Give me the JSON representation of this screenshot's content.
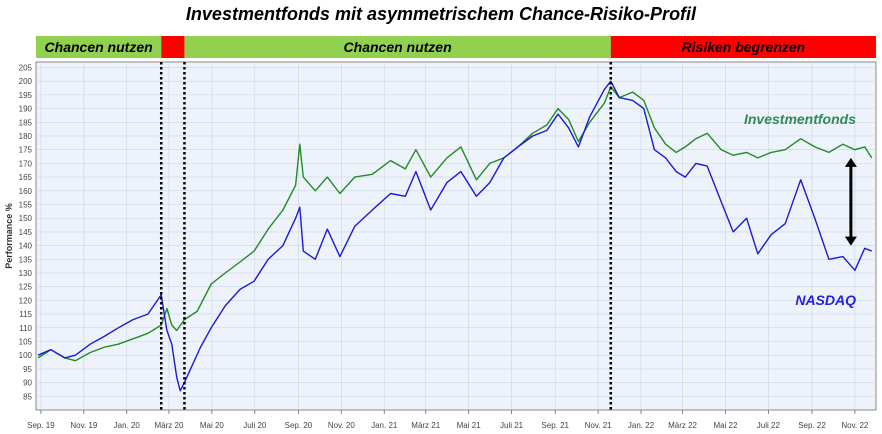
{
  "title": "Investmentfonds mit asymmetrischem Chance-Risiko-Profil",
  "colors": {
    "chance_band": "#92d050",
    "risk_band": "#ff0000",
    "fund_line": "#228b22",
    "nasdaq_line": "#1a1ad6",
    "fund_label": "#2e8b57",
    "nasdaq_label": "#2222dd",
    "plot_bg": "#eef3fb",
    "grid": "#c9d4e6"
  },
  "bands": [
    {
      "label": "Chancen nutzen",
      "start": "2019-08-25",
      "end": "2020-02-19",
      "kind": "chance"
    },
    {
      "label": "",
      "start": "2020-02-19",
      "end": "2020-03-23",
      "kind": "risk"
    },
    {
      "label": "Chancen nutzen",
      "start": "2020-03-23",
      "end": "2021-11-19",
      "kind": "chance"
    },
    {
      "label": "Risiken begrenzen",
      "start": "2021-11-19",
      "end": "2022-12-01",
      "kind": "risk"
    }
  ],
  "chart_data": {
    "type": "line",
    "title": "Investmentfonds mit asymmetrischem Chance-Risiko-Profil",
    "xlabel": "",
    "ylabel": "Performance %",
    "ylim": [
      80,
      207
    ],
    "y_ticks": [
      85,
      90,
      95,
      100,
      105,
      110,
      115,
      120,
      125,
      130,
      135,
      140,
      145,
      150,
      155,
      160,
      165,
      170,
      175,
      180,
      185,
      190,
      195,
      200,
      205
    ],
    "x_ticks": [
      {
        "date": "2019-09-01",
        "label": "Sep. 19"
      },
      {
        "date": "2019-11-01",
        "label": "Nov. 19"
      },
      {
        "date": "2020-01-01",
        "label": "Jan. 20"
      },
      {
        "date": "2020-03-01",
        "label": "März 20"
      },
      {
        "date": "2020-05-01",
        "label": "Mai 20"
      },
      {
        "date": "2020-07-01",
        "label": "Juli 20"
      },
      {
        "date": "2020-09-01",
        "label": "Sep. 20"
      },
      {
        "date": "2020-11-01",
        "label": "Nov. 20"
      },
      {
        "date": "2021-01-01",
        "label": "Jan. 21"
      },
      {
        "date": "2021-03-01",
        "label": "März 21"
      },
      {
        "date": "2021-05-01",
        "label": "Mai 21"
      },
      {
        "date": "2021-07-01",
        "label": "Juli 21"
      },
      {
        "date": "2021-09-01",
        "label": "Sep. 21"
      },
      {
        "date": "2021-11-01",
        "label": "Nov. 21"
      },
      {
        "date": "2022-01-01",
        "label": "Jan. 22"
      },
      {
        "date": "2022-03-01",
        "label": "März 22"
      },
      {
        "date": "2022-05-01",
        "label": "Mai 22"
      },
      {
        "date": "2022-07-01",
        "label": "Juli 22"
      },
      {
        "date": "2022-09-01",
        "label": "Sep. 22"
      },
      {
        "date": "2022-11-01",
        "label": "Nov. 22"
      }
    ],
    "markers": [
      {
        "date": "2020-02-19",
        "style": "dotted"
      },
      {
        "date": "2020-03-23",
        "style": "dotted"
      },
      {
        "date": "2021-11-19",
        "style": "dotted"
      }
    ],
    "annotations": [
      {
        "type": "double-arrow",
        "date": "2022-11-01",
        "y_from": 140,
        "y_to": 172
      }
    ],
    "grid": true,
    "series": [
      {
        "name": "Investmentfonds",
        "points": [
          [
            "2019-08-28",
            99
          ],
          [
            "2019-09-15",
            102
          ],
          [
            "2019-10-05",
            99
          ],
          [
            "2019-10-20",
            98
          ],
          [
            "2019-11-10",
            101
          ],
          [
            "2019-12-01",
            103
          ],
          [
            "2019-12-20",
            104
          ],
          [
            "2020-01-10",
            106
          ],
          [
            "2020-01-31",
            108
          ],
          [
            "2020-02-19",
            111
          ],
          [
            "2020-02-27",
            117
          ],
          [
            "2020-03-05",
            111
          ],
          [
            "2020-03-12",
            109
          ],
          [
            "2020-03-23",
            113
          ],
          [
            "2020-04-10",
            116
          ],
          [
            "2020-04-30",
            126
          ],
          [
            "2020-05-20",
            130
          ],
          [
            "2020-06-10",
            134
          ],
          [
            "2020-06-30",
            138
          ],
          [
            "2020-07-20",
            146
          ],
          [
            "2020-08-10",
            153
          ],
          [
            "2020-08-28",
            162
          ],
          [
            "2020-09-03",
            177
          ],
          [
            "2020-09-08",
            165
          ],
          [
            "2020-09-25",
            160
          ],
          [
            "2020-10-12",
            165
          ],
          [
            "2020-10-30",
            159
          ],
          [
            "2020-11-20",
            165
          ],
          [
            "2020-12-15",
            166
          ],
          [
            "2021-01-10",
            171
          ],
          [
            "2021-01-31",
            168
          ],
          [
            "2021-02-15",
            175
          ],
          [
            "2021-03-08",
            165
          ],
          [
            "2021-03-31",
            172
          ],
          [
            "2021-04-20",
            176
          ],
          [
            "2021-05-12",
            164
          ],
          [
            "2021-05-31",
            170
          ],
          [
            "2021-06-20",
            172
          ],
          [
            "2021-07-10",
            176
          ],
          [
            "2021-07-31",
            181
          ],
          [
            "2021-08-20",
            184
          ],
          [
            "2021-09-05",
            190
          ],
          [
            "2021-09-20",
            186
          ],
          [
            "2021-10-04",
            178
          ],
          [
            "2021-10-20",
            185
          ],
          [
            "2021-11-10",
            192
          ],
          [
            "2021-11-19",
            198
          ],
          [
            "2021-12-01",
            194
          ],
          [
            "2021-12-20",
            196
          ],
          [
            "2022-01-05",
            193
          ],
          [
            "2022-01-20",
            183
          ],
          [
            "2022-02-05",
            177
          ],
          [
            "2022-02-20",
            174
          ],
          [
            "2022-03-05",
            176
          ],
          [
            "2022-03-20",
            179
          ],
          [
            "2022-04-05",
            181
          ],
          [
            "2022-04-25",
            175
          ],
          [
            "2022-05-12",
            173
          ],
          [
            "2022-05-31",
            174
          ],
          [
            "2022-06-16",
            172
          ],
          [
            "2022-07-05",
            174
          ],
          [
            "2022-07-25",
            175
          ],
          [
            "2022-08-16",
            179
          ],
          [
            "2022-09-05",
            176
          ],
          [
            "2022-09-25",
            174
          ],
          [
            "2022-10-15",
            177
          ],
          [
            "2022-11-01",
            175
          ],
          [
            "2022-11-15",
            176
          ],
          [
            "2022-11-25",
            172
          ]
        ]
      },
      {
        "name": "NASDAQ",
        "points": [
          [
            "2019-08-28",
            100
          ],
          [
            "2019-09-15",
            102
          ],
          [
            "2019-10-05",
            99
          ],
          [
            "2019-10-20",
            100
          ],
          [
            "2019-11-10",
            104
          ],
          [
            "2019-12-01",
            107
          ],
          [
            "2019-12-20",
            110
          ],
          [
            "2020-01-10",
            113
          ],
          [
            "2020-01-31",
            115
          ],
          [
            "2020-02-19",
            122
          ],
          [
            "2020-02-27",
            109
          ],
          [
            "2020-03-05",
            104
          ],
          [
            "2020-03-12",
            92
          ],
          [
            "2020-03-17",
            87
          ],
          [
            "2020-03-23",
            90
          ],
          [
            "2020-03-30",
            94
          ],
          [
            "2020-04-15",
            103
          ],
          [
            "2020-04-30",
            110
          ],
          [
            "2020-05-20",
            118
          ],
          [
            "2020-06-10",
            124
          ],
          [
            "2020-06-30",
            127
          ],
          [
            "2020-07-20",
            135
          ],
          [
            "2020-08-10",
            140
          ],
          [
            "2020-08-28",
            150
          ],
          [
            "2020-09-03",
            154
          ],
          [
            "2020-09-08",
            138
          ],
          [
            "2020-09-25",
            135
          ],
          [
            "2020-10-12",
            146
          ],
          [
            "2020-10-30",
            136
          ],
          [
            "2020-11-20",
            147
          ],
          [
            "2020-12-15",
            153
          ],
          [
            "2021-01-10",
            159
          ],
          [
            "2021-01-31",
            158
          ],
          [
            "2021-02-15",
            167
          ],
          [
            "2021-03-08",
            153
          ],
          [
            "2021-03-31",
            163
          ],
          [
            "2021-04-20",
            167
          ],
          [
            "2021-05-12",
            158
          ],
          [
            "2021-05-31",
            163
          ],
          [
            "2021-06-20",
            172
          ],
          [
            "2021-07-10",
            176
          ],
          [
            "2021-07-31",
            180
          ],
          [
            "2021-08-20",
            182
          ],
          [
            "2021-09-05",
            188
          ],
          [
            "2021-09-20",
            183
          ],
          [
            "2021-10-04",
            176
          ],
          [
            "2021-10-20",
            187
          ],
          [
            "2021-11-10",
            197
          ],
          [
            "2021-11-19",
            200
          ],
          [
            "2021-12-01",
            194
          ],
          [
            "2021-12-20",
            193
          ],
          [
            "2022-01-05",
            190
          ],
          [
            "2022-01-20",
            175
          ],
          [
            "2022-02-05",
            172
          ],
          [
            "2022-02-20",
            167
          ],
          [
            "2022-03-05",
            165
          ],
          [
            "2022-03-20",
            170
          ],
          [
            "2022-04-05",
            169
          ],
          [
            "2022-04-25",
            156
          ],
          [
            "2022-05-12",
            145
          ],
          [
            "2022-05-31",
            150
          ],
          [
            "2022-06-16",
            137
          ],
          [
            "2022-07-05",
            144
          ],
          [
            "2022-07-25",
            148
          ],
          [
            "2022-08-16",
            164
          ],
          [
            "2022-09-05",
            150
          ],
          [
            "2022-09-25",
            135
          ],
          [
            "2022-10-15",
            136
          ],
          [
            "2022-11-01",
            131
          ],
          [
            "2022-11-15",
            139
          ],
          [
            "2022-11-25",
            138
          ]
        ]
      }
    ]
  }
}
